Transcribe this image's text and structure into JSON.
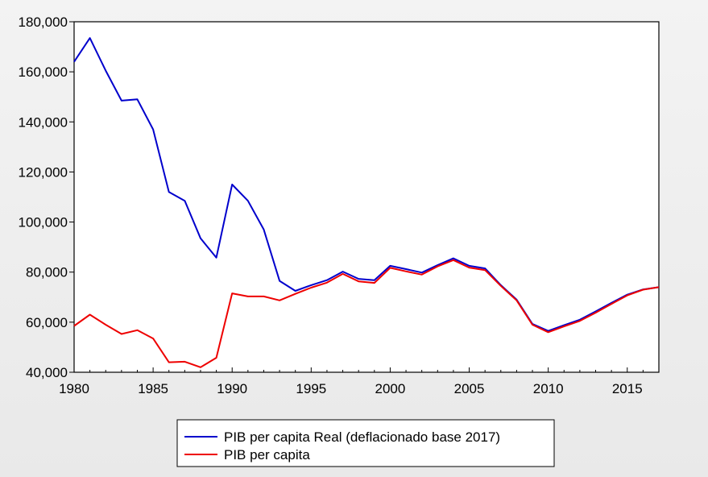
{
  "chart_data": {
    "type": "line",
    "title": "",
    "xlabel": "",
    "ylabel": "",
    "xlim": [
      1980,
      2017
    ],
    "ylim": [
      40000,
      180000
    ],
    "grid": false,
    "legend_position": "bottom-center",
    "x_ticks": [
      1980,
      1985,
      1990,
      1995,
      2000,
      2005,
      2010,
      2015
    ],
    "x_tick_labels": [
      "1980",
      "1985",
      "1990",
      "1995",
      "2000",
      "2005",
      "2010",
      "2015"
    ],
    "y_ticks": [
      40000,
      60000,
      80000,
      100000,
      120000,
      140000,
      160000,
      180000
    ],
    "y_tick_labels": [
      "40,000",
      "60,000",
      "80,000",
      "100,000",
      "120,000",
      "140,000",
      "160,000",
      "180,000"
    ],
    "x": [
      1980,
      1981,
      1982,
      1983,
      1984,
      1985,
      1986,
      1987,
      1988,
      1989,
      1990,
      1991,
      1992,
      1993,
      1994,
      1995,
      1996,
      1997,
      1998,
      1999,
      2000,
      2001,
      2002,
      2003,
      2004,
      2005,
      2006,
      2007,
      2008,
      2009,
      2010,
      2011,
      2012,
      2013,
      2014,
      2015,
      2016,
      2017
    ],
    "series": [
      {
        "name": "PIB per capita Real (deflacionado base 2017)",
        "color": "#0000cc",
        "values": [
          164000,
          173500,
          160500,
          148500,
          149000,
          137000,
          112000,
          108500,
          93500,
          85800,
          115000,
          108500,
          97000,
          76500,
          72500,
          74800,
          76800,
          80200,
          77300,
          76800,
          82500,
          81200,
          79800,
          82800,
          85500,
          82500,
          81500,
          74800,
          69000,
          59300,
          56500,
          58800,
          61000,
          64300,
          67700,
          71000,
          73100,
          74000
        ]
      },
      {
        "name": "PIB per capita",
        "color": "#ee0000",
        "values": [
          58500,
          63000,
          59000,
          55300,
          56800,
          53500,
          44000,
          44200,
          42000,
          45800,
          71500,
          70300,
          70300,
          68700,
          71300,
          73800,
          75800,
          79300,
          76300,
          75700,
          81700,
          80300,
          79000,
          82300,
          84800,
          81800,
          80800,
          74500,
          68700,
          59000,
          56000,
          58300,
          60500,
          63800,
          67300,
          70700,
          73000,
          74000
        ]
      }
    ]
  }
}
